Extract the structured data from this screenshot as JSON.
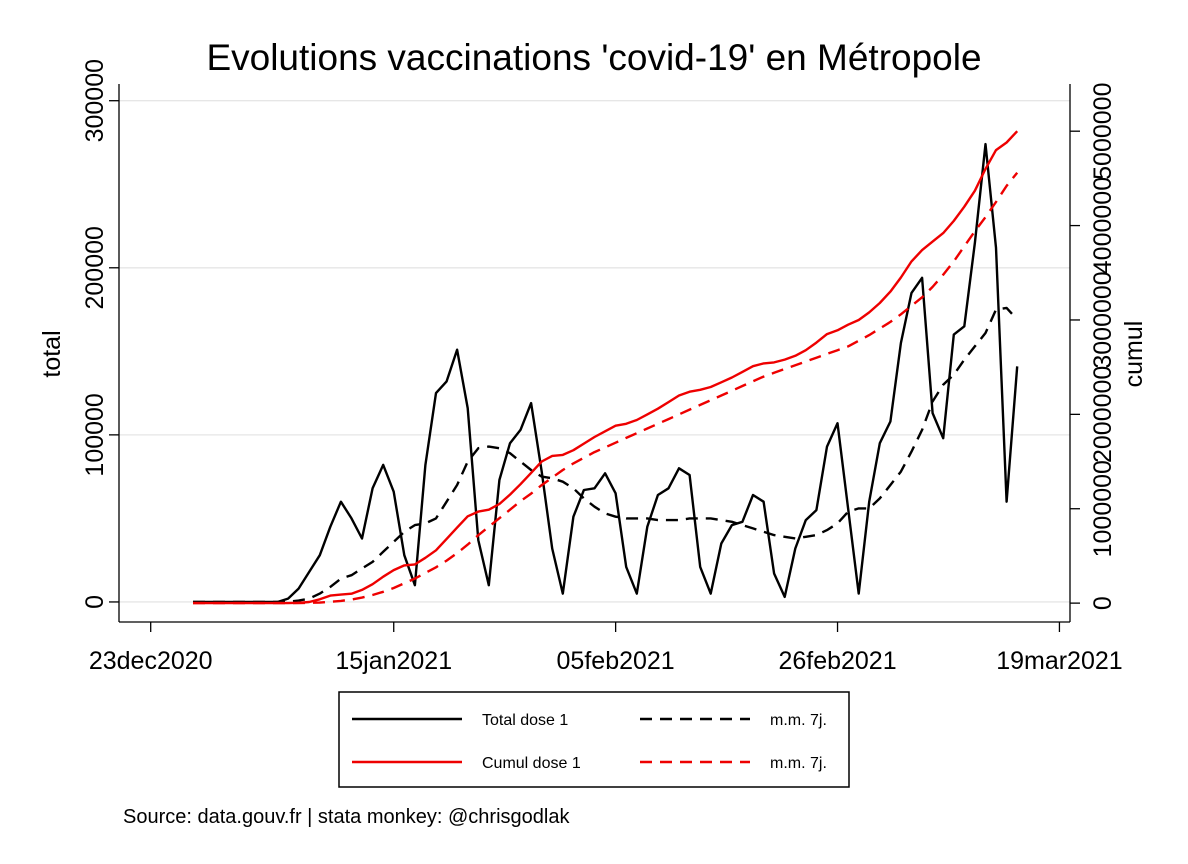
{
  "chart_data": {
    "type": "line",
    "title": "Evolutions vaccinations 'covid-19' en Métropole",
    "ylabel_left": "total",
    "ylabel_right": "cumul",
    "xlabel": "",
    "x_start": "2020-12-27",
    "x_ticks": [
      "23dec2020",
      "15jan2021",
      "05feb2021",
      "26feb2021",
      "19mar2021"
    ],
    "x_range": [
      "2020-12-20",
      "2021-03-20"
    ],
    "y_left_ticks": [
      "0",
      "100000",
      "200000",
      "300000"
    ],
    "y_left_range": [
      -12000,
      310000
    ],
    "y_right_ticks": [
      "0",
      "1000000",
      "2000000",
      "3000000",
      "4000000",
      "5000000"
    ],
    "y_right_range": [
      -200000,
      5500000
    ],
    "grid": true,
    "legend_position": "bottom",
    "series": [
      {
        "name": "Total dose 1",
        "axis": "left",
        "color": "#000000",
        "dash": "solid",
        "values": [
          0,
          0,
          0,
          0,
          0,
          0,
          0,
          0,
          0,
          2000,
          8000,
          18000,
          28000,
          45000,
          60000,
          50000,
          38000,
          68000,
          82000,
          66000,
          28000,
          10000,
          82000,
          125000,
          132000,
          151000,
          116000,
          37000,
          10000,
          73000,
          95000,
          103000,
          119000,
          78000,
          32000,
          5000,
          51000,
          67000,
          68000,
          77000,
          65000,
          21000,
          5000,
          45000,
          64000,
          68000,
          80000,
          76000,
          21000,
          5000,
          35000,
          46000,
          48000,
          64000,
          60000,
          17000,
          3000,
          32000,
          49000,
          55000,
          93000,
          107000,
          56000,
          5000,
          60000,
          95000,
          108000,
          155000,
          185000,
          194000,
          113000,
          98000,
          160000,
          165000,
          215000,
          274000,
          212000,
          60000,
          141000
        ]
      },
      {
        "name": "m.m. 7j.",
        "axis": "left",
        "color": "#000000",
        "dash": "dashed",
        "values": [
          0,
          0,
          0,
          0,
          0,
          0,
          0,
          0,
          0,
          200,
          800,
          2000,
          5000,
          9000,
          14000,
          16000,
          20000,
          24000,
          30000,
          36000,
          42000,
          46000,
          47000,
          50000,
          60000,
          70000,
          84000,
          92000,
          93000,
          92000,
          89000,
          84000,
          79000,
          75000,
          74000,
          72000,
          68000,
          62000,
          57000,
          53000,
          51000,
          50000,
          50000,
          50000,
          49000,
          49000,
          49000,
          50000,
          50000,
          50000,
          49000,
          48000,
          46000,
          44000,
          42000,
          40000,
          39000,
          38000,
          39000,
          40000,
          43000,
          47000,
          54000,
          56000,
          56000,
          62000,
          70000,
          78000,
          90000,
          103000,
          120000,
          130000,
          136000,
          145000,
          153000,
          161000,
          175000,
          176000,
          169000
        ]
      },
      {
        "name": "Cumul dose 1",
        "axis": "right",
        "color": "#ee0000",
        "dash": "solid",
        "values": [
          0,
          0,
          0,
          0,
          0,
          0,
          0,
          0,
          0,
          0,
          3000,
          12000,
          40000,
          80000,
          90000,
          100000,
          140000,
          200000,
          280000,
          350000,
          400000,
          410000,
          480000,
          560000,
          680000,
          800000,
          920000,
          970000,
          990000,
          1050000,
          1150000,
          1260000,
          1380000,
          1500000,
          1560000,
          1570000,
          1620000,
          1690000,
          1760000,
          1820000,
          1880000,
          1900000,
          1940000,
          2000000,
          2060000,
          2130000,
          2200000,
          2240000,
          2260000,
          2290000,
          2340000,
          2390000,
          2450000,
          2510000,
          2540000,
          2550000,
          2580000,
          2620000,
          2680000,
          2760000,
          2850000,
          2890000,
          2950000,
          3000000,
          3080000,
          3180000,
          3300000,
          3450000,
          3620000,
          3740000,
          3830000,
          3920000,
          4050000,
          4200000,
          4370000,
          4600000,
          4800000,
          4880000,
          5000000
        ]
      },
      {
        "name": "m.m. 7j.",
        "axis": "right",
        "color": "#ee0000",
        "dash": "dashed",
        "values": [
          0,
          0,
          0,
          0,
          0,
          0,
          0,
          0,
          0,
          0,
          0,
          3000,
          6000,
          14000,
          24000,
          38000,
          58000,
          86000,
          120000,
          160000,
          210000,
          260000,
          320000,
          380000,
          450000,
          530000,
          620000,
          720000,
          810000,
          900000,
          990000,
          1080000,
          1160000,
          1250000,
          1330000,
          1410000,
          1480000,
          1540000,
          1600000,
          1650000,
          1700000,
          1750000,
          1800000,
          1850000,
          1900000,
          1950000,
          2000000,
          2050000,
          2100000,
          2150000,
          2200000,
          2250000,
          2300000,
          2350000,
          2400000,
          2440000,
          2480000,
          2520000,
          2560000,
          2600000,
          2640000,
          2680000,
          2720000,
          2780000,
          2840000,
          2910000,
          2980000,
          3060000,
          3150000,
          3240000,
          3350000,
          3480000,
          3620000,
          3780000,
          3940000,
          4090000,
          4250000,
          4420000,
          4560000
        ]
      }
    ],
    "legend": [
      {
        "label": "Total dose 1",
        "color": "#000000",
        "dash": "solid"
      },
      {
        "label": "m.m. 7j.",
        "color": "#000000",
        "dash": "dashed"
      },
      {
        "label": "Cumul dose 1",
        "color": "#ee0000",
        "dash": "solid"
      },
      {
        "label": "m.m. 7j.",
        "color": "#ee0000",
        "dash": "dashed"
      }
    ],
    "note": "Source: data.gouv.fr | stata monkey: @chrisgodlak"
  }
}
